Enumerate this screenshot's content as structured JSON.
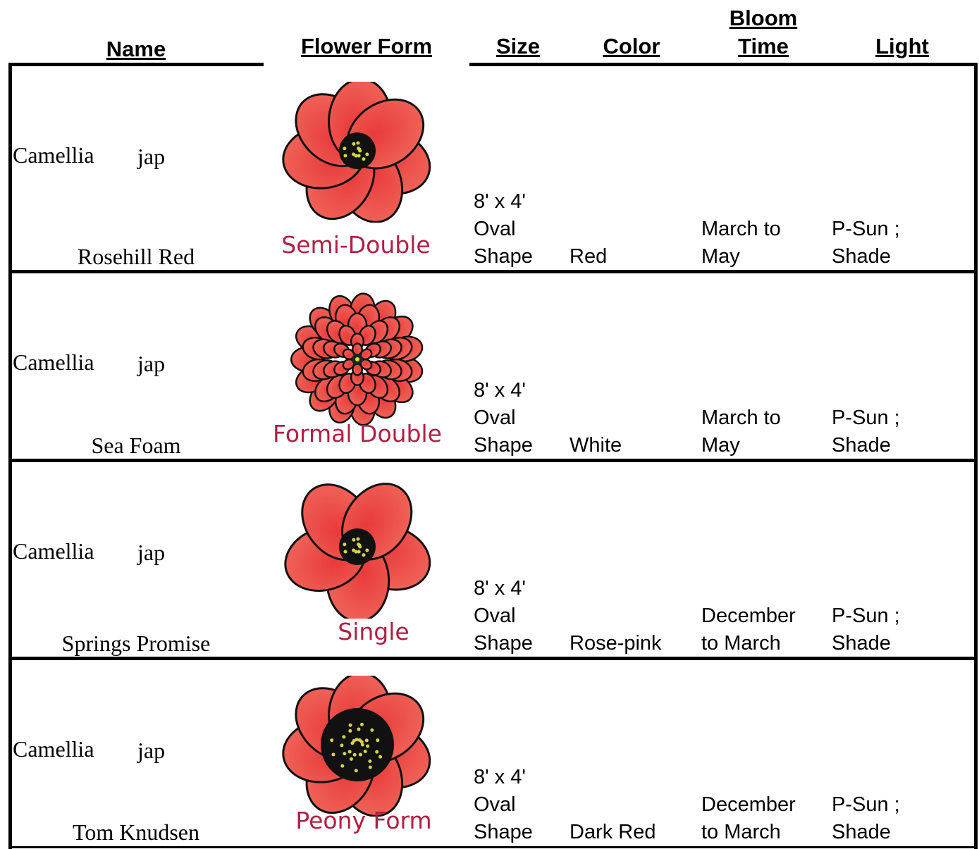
{
  "table": {
    "headers": [
      [
        "Name"
      ],
      [
        "Flower Form"
      ],
      [
        "Size"
      ],
      [
        "Color"
      ],
      [
        "Bloom",
        "Time"
      ],
      [
        "Light"
      ]
    ],
    "rows": [
      {
        "genus": "Camellia",
        "species": "jap",
        "cultivar": "Rosehill Red",
        "form": "Semi-Double",
        "size": [
          "8' x 4'",
          "Oval",
          "Shape"
        ],
        "color": "Red",
        "bloom": [
          "March to",
          "May"
        ],
        "light": [
          "P-Sun ;",
          "Shade"
        ]
      },
      {
        "genus": "Camellia",
        "species": "jap",
        "cultivar": "Sea Foam",
        "form": "Formal Double",
        "size": [
          "8' x 4'",
          "Oval",
          "Shape"
        ],
        "color": "White",
        "bloom": [
          "March to",
          "May"
        ],
        "light": [
          "P-Sun ;",
          "Shade"
        ]
      },
      {
        "genus": "Camellia",
        "species": "jap",
        "cultivar": "Springs Promise",
        "form": "Single",
        "size": [
          "8' x 4'",
          "Oval",
          "Shape"
        ],
        "color": "Rose-pink",
        "bloom": [
          "December",
          "to March"
        ],
        "light": [
          "P-Sun ;",
          "Shade"
        ]
      },
      {
        "genus": "Camellia",
        "species": "jap",
        "cultivar": "Tom Knudsen",
        "form": "Peony Form",
        "size": [
          "8' x 4'",
          "Oval",
          "Shape"
        ],
        "color": "Dark Red",
        "bloom": [
          "December",
          "to March"
        ],
        "light": [
          "P-Sun ;",
          "Shade"
        ]
      }
    ]
  }
}
